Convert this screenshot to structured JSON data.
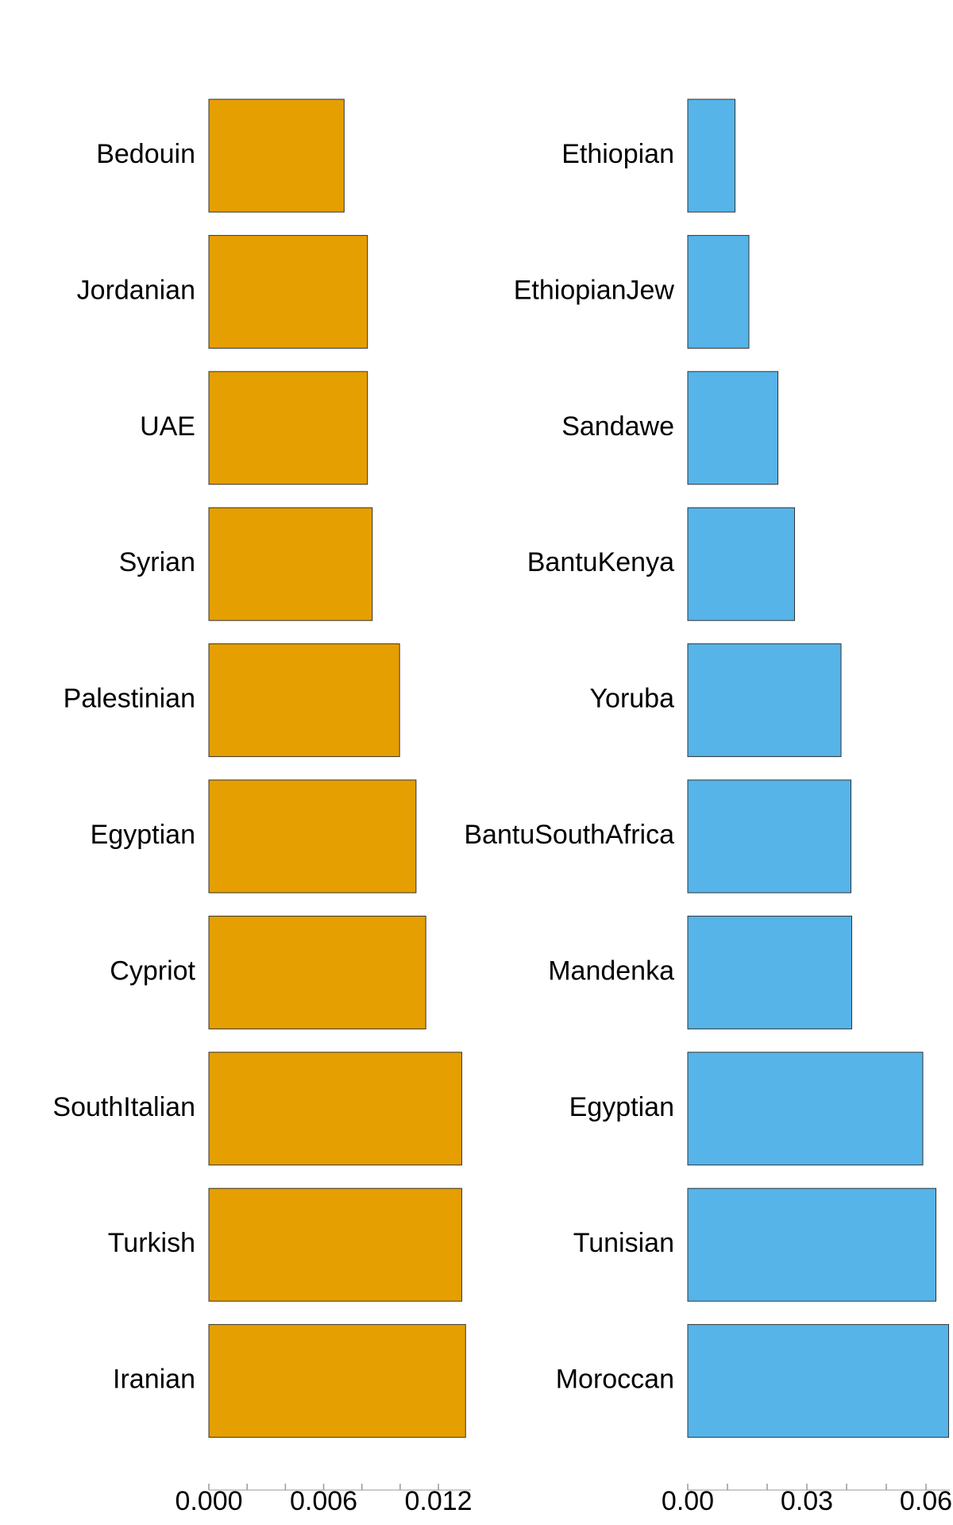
{
  "chart_data": [
    {
      "type": "bar",
      "orientation": "horizontal",
      "color": "#E69F00",
      "categories": [
        "Bedouin",
        "Jordanian",
        "UAE",
        "Syrian",
        "Palestinian",
        "Egyptian",
        "Cypriot",
        "SouthItalian",
        "Turkish",
        "Iranian"
      ],
      "values": [
        0.00707,
        0.00829,
        0.00829,
        0.00854,
        0.00997,
        0.01083,
        0.01134,
        0.01322,
        0.01322,
        0.01342
      ],
      "xlim": [
        0,
        0.0137
      ],
      "xticks": [
        {
          "value": 0,
          "label": "0.000"
        },
        0.006,
        0.012
      ],
      "xminorticks": [
        0.002,
        0.004,
        0.008,
        0.01
      ]
    },
    {
      "type": "bar",
      "orientation": "horizontal",
      "color": "#56B4E9",
      "categories": [
        "Ethiopian",
        "EthiopianJew",
        "Sandawe",
        "BantuKenya",
        "Yoruba",
        "BantuSouthAfrica",
        "Mandenka",
        "Egyptian",
        "Tunisian",
        "Moroccan"
      ],
      "values": [
        0.0119,
        0.0154,
        0.0227,
        0.0269,
        0.0386,
        0.0411,
        0.0413,
        0.0592,
        0.0625,
        0.0657
      ],
      "xlim": [
        0,
        0.066
      ],
      "xticks": [
        {
          "value": 0,
          "label": "0.00"
        },
        0.03,
        0.06
      ],
      "xminorticks": [
        0.01,
        0.02,
        0.04,
        0.05
      ]
    }
  ]
}
